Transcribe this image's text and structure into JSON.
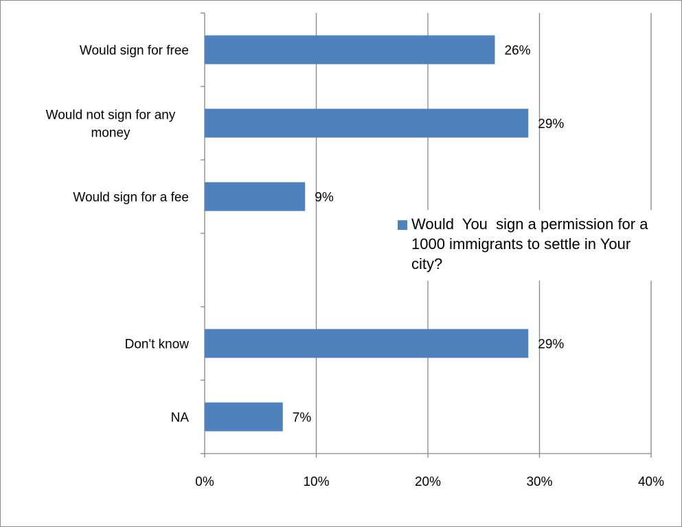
{
  "chart_data": {
    "type": "bar",
    "orientation": "horizontal",
    "categories": [
      "Would sign for free",
      "Would not sign for any\nmoney",
      "Would sign for a fee",
      "",
      "Don't know",
      "NA"
    ],
    "series": [
      {
        "name": "Would  You  sign a permission for a 1000 immigrants to settle in Your city?",
        "values": [
          26,
          29,
          9,
          null,
          29,
          7
        ],
        "data_labels": [
          "26%",
          "29%",
          "9%",
          "",
          "29%",
          "7%"
        ]
      }
    ],
    "xlim": [
      0,
      40
    ],
    "x_ticks": [
      0,
      10,
      20,
      30,
      40
    ],
    "x_tick_labels": [
      "0%",
      "10%",
      "20%",
      "30%",
      "40%"
    ],
    "title": "",
    "xlabel": "",
    "ylabel": "",
    "grid": "vertical",
    "legend_position": "right-middle",
    "colors": {
      "bar": "#4f81bd",
      "grid": "#868686",
      "axis": "#868686"
    }
  }
}
